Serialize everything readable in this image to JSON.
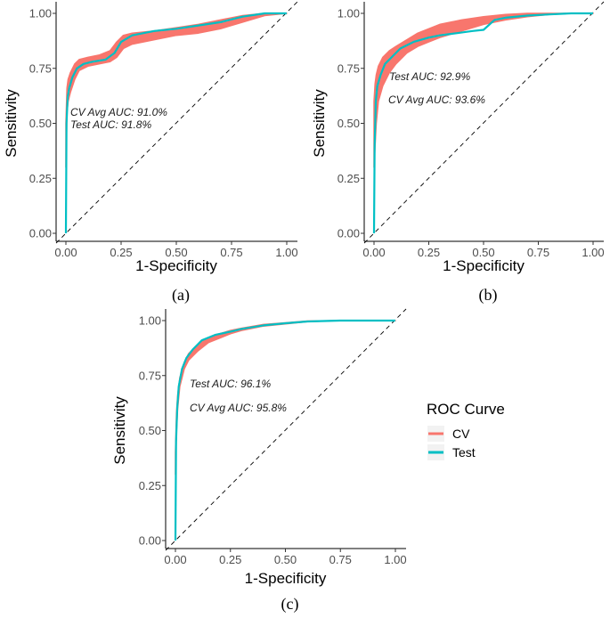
{
  "chart_data": [
    {
      "type": "line",
      "panel": "(a)",
      "xlabel": "1-Specificity",
      "ylabel": "Sensitivity",
      "xlim": [
        0,
        1
      ],
      "ylim": [
        0,
        1
      ],
      "xticks": [
        "0.00",
        "0.25",
        "0.50",
        "0.75",
        "1.00"
      ],
      "yticks": [
        "0.00",
        "0.25",
        "0.50",
        "0.75",
        "1.00"
      ],
      "annotations": [
        "CV Avg AUC: 91.0%",
        "Test AUC: 91.8%"
      ],
      "series": [
        {
          "name": "CV",
          "band": true,
          "x": [
            0,
            0.005,
            0.01,
            0.02,
            0.04,
            0.06,
            0.1,
            0.15,
            0.2,
            0.23,
            0.26,
            0.3,
            0.4,
            0.5,
            0.6,
            0.7,
            0.8,
            0.9,
            1.0
          ],
          "lower": [
            0.3,
            0.55,
            0.6,
            0.64,
            0.7,
            0.74,
            0.76,
            0.77,
            0.78,
            0.8,
            0.84,
            0.86,
            0.88,
            0.9,
            0.91,
            0.93,
            0.96,
            0.99,
            1.0
          ],
          "upper": [
            0.5,
            0.66,
            0.7,
            0.73,
            0.77,
            0.79,
            0.8,
            0.81,
            0.83,
            0.87,
            0.9,
            0.91,
            0.92,
            0.935,
            0.95,
            0.97,
            0.99,
            1.0,
            1.0
          ]
        },
        {
          "name": "Test",
          "x": [
            0,
            0.003,
            0.008,
            0.015,
            0.03,
            0.05,
            0.08,
            0.12,
            0.18,
            0.22,
            0.25,
            0.3,
            0.4,
            0.5,
            0.6,
            0.7,
            0.8,
            0.9,
            1.0
          ],
          "y": [
            0,
            0.5,
            0.62,
            0.66,
            0.71,
            0.75,
            0.77,
            0.78,
            0.79,
            0.82,
            0.87,
            0.9,
            0.92,
            0.93,
            0.945,
            0.96,
            0.985,
            1.0,
            1.0
          ]
        }
      ]
    },
    {
      "type": "line",
      "panel": "(b)",
      "xlabel": "1-Specificity",
      "ylabel": "Sensitivity",
      "xlim": [
        0,
        1
      ],
      "ylim": [
        0,
        1
      ],
      "xticks": [
        "0.00",
        "0.25",
        "0.50",
        "0.75",
        "1.00"
      ],
      "yticks": [
        "0.00",
        "0.25",
        "0.50",
        "0.75",
        "1.00"
      ],
      "annotations": [
        "Test AUC: 92.9%",
        "CV Avg AUC: 93.6%"
      ],
      "series": [
        {
          "name": "CV",
          "band": true,
          "x": [
            0,
            0.005,
            0.01,
            0.02,
            0.04,
            0.07,
            0.1,
            0.15,
            0.2,
            0.25,
            0.3,
            0.4,
            0.5,
            0.6,
            0.7,
            0.8,
            0.9,
            1.0
          ],
          "lower": [
            0.3,
            0.4,
            0.5,
            0.6,
            0.67,
            0.73,
            0.77,
            0.82,
            0.85,
            0.87,
            0.89,
            0.92,
            0.95,
            0.97,
            0.985,
            0.995,
            1.0,
            1.0
          ],
          "upper": [
            0.6,
            0.68,
            0.72,
            0.76,
            0.8,
            0.83,
            0.85,
            0.88,
            0.91,
            0.93,
            0.95,
            0.97,
            0.985,
            0.995,
            1.0,
            1.0,
            1.0,
            1.0
          ]
        },
        {
          "name": "Test",
          "x": [
            0,
            0.003,
            0.008,
            0.015,
            0.03,
            0.05,
            0.08,
            0.12,
            0.18,
            0.25,
            0.3,
            0.38,
            0.45,
            0.5,
            0.55,
            0.6,
            0.7,
            0.8,
            0.9,
            1.0
          ],
          "y": [
            0,
            0.4,
            0.6,
            0.67,
            0.72,
            0.77,
            0.8,
            0.84,
            0.87,
            0.89,
            0.9,
            0.91,
            0.92,
            0.925,
            0.97,
            0.98,
            0.99,
            0.995,
            1.0,
            1.0
          ]
        }
      ]
    },
    {
      "type": "line",
      "panel": "(c)",
      "xlabel": "1-Specificity",
      "ylabel": "Sensitivity",
      "xlim": [
        0,
        1
      ],
      "ylim": [
        0,
        1
      ],
      "xticks": [
        "0.00",
        "0.25",
        "0.50",
        "0.75",
        "1.00"
      ],
      "yticks": [
        "0.00",
        "0.25",
        "0.50",
        "0.75",
        "1.00"
      ],
      "annotations": [
        "Test AUC: 96.1%",
        "CV Avg AUC: 95.8%"
      ],
      "series": [
        {
          "name": "CV",
          "band": true,
          "x": [
            0,
            0.005,
            0.01,
            0.02,
            0.04,
            0.06,
            0.1,
            0.15,
            0.2,
            0.25,
            0.3,
            0.4,
            0.5,
            0.6,
            0.75,
            1.0
          ],
          "lower": [
            0.3,
            0.5,
            0.6,
            0.7,
            0.78,
            0.82,
            0.86,
            0.9,
            0.92,
            0.94,
            0.955,
            0.975,
            0.985,
            0.995,
            1.0,
            1.0
          ],
          "upper": [
            0.4,
            0.58,
            0.66,
            0.74,
            0.81,
            0.85,
            0.89,
            0.92,
            0.94,
            0.955,
            0.965,
            0.982,
            0.99,
            0.998,
            1.0,
            1.0
          ]
        },
        {
          "name": "Test",
          "x": [
            0,
            0.003,
            0.008,
            0.015,
            0.03,
            0.05,
            0.08,
            0.12,
            0.18,
            0.25,
            0.3,
            0.4,
            0.5,
            0.6,
            0.75,
            1.0
          ],
          "y": [
            0,
            0.45,
            0.6,
            0.7,
            0.78,
            0.83,
            0.87,
            0.91,
            0.935,
            0.95,
            0.962,
            0.978,
            0.988,
            0.996,
            1.0,
            1.0
          ]
        }
      ]
    }
  ],
  "legend": {
    "title": "ROC Curve",
    "items": [
      {
        "label": "CV",
        "color": "#F8766D"
      },
      {
        "label": "Test",
        "color": "#00BFC4"
      }
    ]
  }
}
